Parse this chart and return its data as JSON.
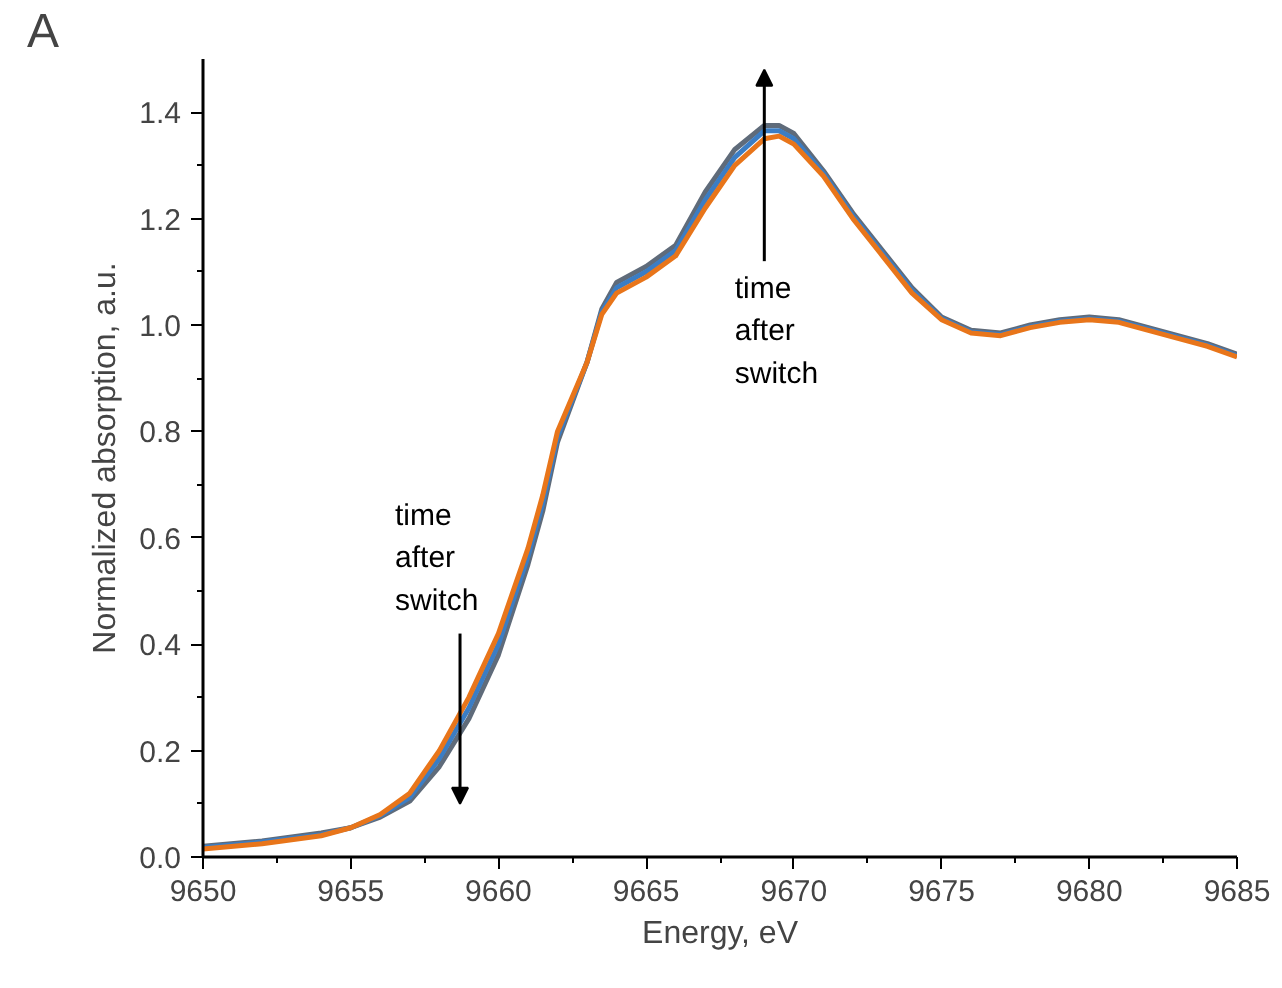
{
  "chart_data": {
    "type": "line",
    "xlabel": "Energy, eV",
    "ylabel": "Normalized absorption, a.u.",
    "xlim": [
      9650,
      9685
    ],
    "ylim": [
      0,
      1.5
    ],
    "xticks": [
      9650,
      9655,
      9660,
      9665,
      9670,
      9675,
      9680,
      9685
    ],
    "yticks": [
      {
        "value": 0,
        "label": "0.0"
      },
      0.2,
      0.4,
      0.6,
      0.8,
      {
        "value": 1,
        "label": "1.0"
      },
      1.2,
      1.4
    ],
    "grid": false,
    "x": [
      9650,
      9652,
      9654,
      9655,
      9656,
      9657,
      9658,
      9659,
      9660,
      9661,
      9661.5,
      9662,
      9663,
      9663.5,
      9664,
      9665,
      9666,
      9667,
      9668,
      9669,
      9669.5,
      9670,
      9671,
      9672,
      9673,
      9674,
      9675,
      9676,
      9677,
      9678,
      9679,
      9680,
      9681,
      9682,
      9683,
      9684,
      9685
    ],
    "series": [
      {
        "color": "#5f6b7a",
        "values": [
          0.02,
          0.03,
          0.045,
          0.055,
          0.075,
          0.105,
          0.17,
          0.26,
          0.38,
          0.55,
          0.65,
          0.78,
          0.93,
          1.03,
          1.08,
          1.11,
          1.15,
          1.25,
          1.33,
          1.375,
          1.375,
          1.36,
          1.29,
          1.21,
          1.14,
          1.07,
          1.015,
          0.99,
          0.985,
          1.0,
          1.01,
          1.015,
          1.01,
          0.995,
          0.98,
          0.965,
          0.945
        ]
      },
      {
        "color": "#3b7dc4",
        "values": [
          0.018,
          0.028,
          0.042,
          0.055,
          0.078,
          0.112,
          0.185,
          0.28,
          0.4,
          0.565,
          0.665,
          0.79,
          0.93,
          1.025,
          1.07,
          1.1,
          1.14,
          1.235,
          1.315,
          1.365,
          1.365,
          1.35,
          1.285,
          1.205,
          1.135,
          1.065,
          1.012,
          0.987,
          0.982,
          0.997,
          1.007,
          1.012,
          1.007,
          0.992,
          0.977,
          0.962,
          0.942
        ]
      },
      {
        "color": "#e8751a",
        "values": [
          0.015,
          0.025,
          0.04,
          0.055,
          0.08,
          0.12,
          0.2,
          0.3,
          0.42,
          0.58,
          0.68,
          0.8,
          0.93,
          1.02,
          1.06,
          1.09,
          1.13,
          1.22,
          1.3,
          1.35,
          1.355,
          1.34,
          1.28,
          1.2,
          1.13,
          1.06,
          1.01,
          0.985,
          0.98,
          0.995,
          1.005,
          1.01,
          1.005,
          0.99,
          0.975,
          0.96,
          0.94
        ]
      }
    ],
    "annotations": [
      "A",
      "time\nafter\nswitch",
      "time\nafter\nswitch"
    ]
  }
}
